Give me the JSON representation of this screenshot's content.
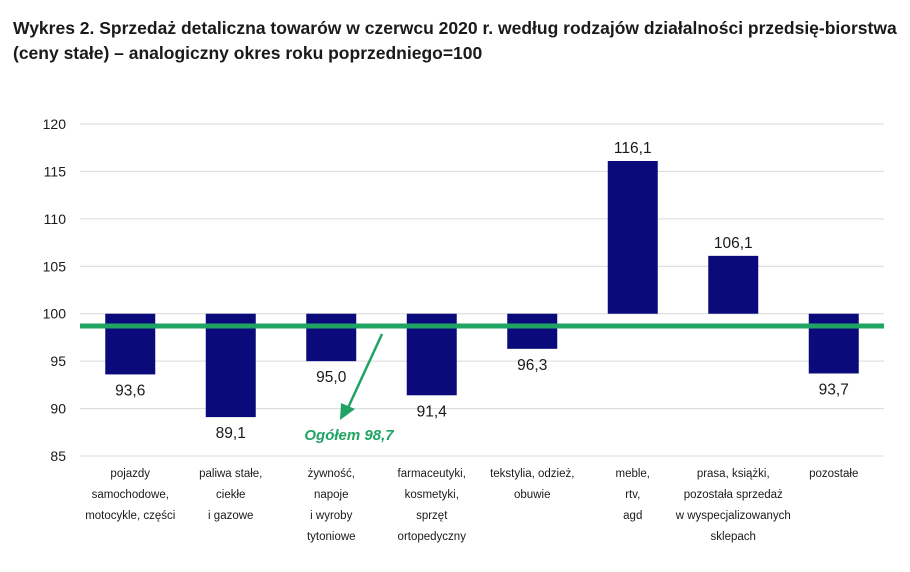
{
  "title": "Wykres 2. Sprzedaż detaliczna towarów w czerwcu 2020 r. według rodzajów działalności przedsię-biorstwa (ceny stałe) – analogiczny okres roku poprzedniego=100",
  "chart_data": {
    "type": "bar",
    "title": "Wykres 2. Sprzedaż detaliczna towarów w czerwcu 2020 r. według rodzajów działalności przedsię-biorstwa (ceny stałe) – analogiczny okres roku poprzedniego=100",
    "baseline": 100,
    "ylim": [
      85,
      120
    ],
    "yticks": [
      "85",
      "90",
      "95",
      "100",
      "105",
      "110",
      "115",
      "120"
    ],
    "grid": true,
    "categories": [
      [
        "pojazdy",
        "samochodowe,",
        "motocykle, części"
      ],
      [
        "paliwa stałe,",
        "ciekłe",
        "i gazowe"
      ],
      [
        "żywność,",
        "napoje",
        "i wyroby",
        "tytoniowe"
      ],
      [
        "farmaceutyki,",
        "kosmetyki,",
        "sprzęt",
        "ortopedyczny"
      ],
      [
        "tekstylia, odzież,",
        "obuwie"
      ],
      [
        "meble,",
        "rtv,",
        "agd"
      ],
      [
        "prasa, książki,",
        "pozostała sprzedaż",
        "w wyspecjalizowanych",
        "sklepach"
      ],
      [
        "pozostałe"
      ]
    ],
    "values": [
      93.6,
      89.1,
      95.0,
      91.4,
      96.3,
      116.1,
      106.1,
      93.7
    ],
    "value_labels": [
      "93,6",
      "89,1",
      "95,0",
      "91,4",
      "96,3",
      "116,1",
      "106,1",
      "93,7"
    ],
    "reference_line": {
      "value": 98.7,
      "label": "Ogółem 98,7"
    },
    "colors": {
      "bar": "#0a0a7a",
      "reference": "#1fa463",
      "grid": "#d9d9d9",
      "text": "#1a1a1a"
    }
  }
}
